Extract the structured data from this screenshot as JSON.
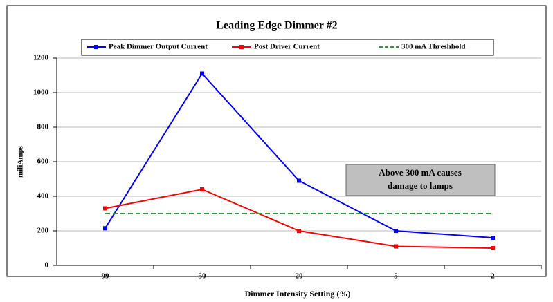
{
  "chart_data": {
    "type": "line",
    "title": "Leading Edge Dimmer #2",
    "x_label": "Dimmer Intensity Setting (%)",
    "y_label": "miliAmps",
    "categories": [
      "99",
      "50",
      "20",
      "5",
      "2"
    ],
    "series": [
      {
        "name": "Peak Dimmer Output Current",
        "color": "#0000ff",
        "values": [
          215,
          1110,
          490,
          200,
          160
        ]
      },
      {
        "name": "Post Driver Current",
        "color": "#ff0000",
        "values": [
          330,
          440,
          200,
          110,
          100
        ]
      },
      {
        "name": "300 mA Threshhold",
        "color": "#2e9a3a",
        "dashed": true,
        "values": [
          300,
          300,
          300,
          300,
          300
        ]
      }
    ],
    "annotation": [
      "Above 300 mA causes",
      "damage to lamps"
    ],
    "ylim": [
      0,
      1200
    ],
    "yticks": [
      0,
      200,
      400,
      600,
      800,
      1000,
      1200
    ],
    "grid": true
  }
}
